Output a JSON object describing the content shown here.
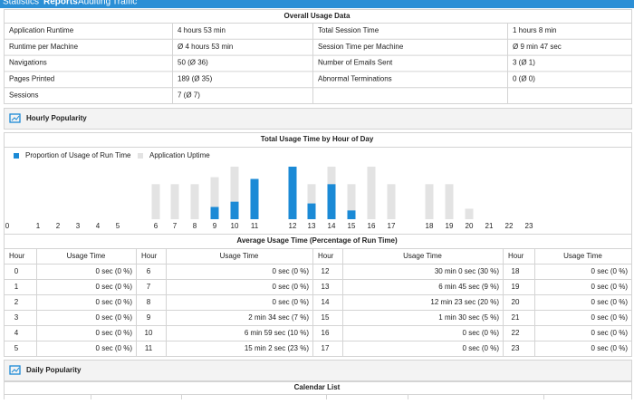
{
  "nav": [
    "Statistics",
    "Reports",
    "Auditing",
    "Traffic"
  ],
  "overall": {
    "title": "Overall Usage Data",
    "rows": [
      [
        "Application Runtime",
        "4 hours 53 min",
        "Total Session Time",
        "1 hours 8 min"
      ],
      [
        "Runtime per Machine",
        "Ø 4 hours 53 min",
        "Session Time per Machine",
        "Ø 9 min 47 sec"
      ],
      [
        "Navigations",
        "50 (Ø 36)",
        "Number of Emails Sent",
        "3 (Ø 1)"
      ],
      [
        "Pages Printed",
        "189 (Ø 35)",
        "Abnormal Terminations",
        "0 (Ø 0)"
      ],
      [
        "Sessions",
        "7 (Ø 7)"
      ]
    ]
  },
  "hourly_section": "Hourly Popularity",
  "chart_data": {
    "type": "bar",
    "title": "Total Usage Time by Hour of Day",
    "categories": [
      "0",
      "1",
      "2",
      "3",
      "4",
      "5",
      "6",
      "7",
      "8",
      "9",
      "10",
      "11",
      "12",
      "13",
      "14",
      "15",
      "16",
      "17",
      "18",
      "19",
      "20",
      "21",
      "22",
      "23"
    ],
    "series": [
      {
        "name": "Proportion of Usage of Run Time",
        "color": "#1b8ad6",
        "values": [
          0,
          0,
          0,
          0,
          0,
          0,
          0,
          0,
          0,
          7,
          10,
          23,
          30,
          9,
          20,
          5,
          0,
          0,
          0,
          0,
          0,
          0,
          0,
          0
        ]
      },
      {
        "name": "Application Uptime",
        "color": "#e3e3e3",
        "values": [
          0,
          0,
          0,
          0,
          0,
          0,
          20,
          20,
          20,
          24,
          30,
          20,
          30,
          20,
          30,
          20,
          30,
          20,
          20,
          20,
          6,
          0,
          0,
          0
        ]
      }
    ]
  },
  "hourly_table": {
    "title": "Average Usage Time (Percentage of Run Time)",
    "header": [
      "Hour",
      "Usage Time",
      "Hour",
      "Usage Time",
      "Hour",
      "Usage Time",
      "Hour",
      "Usage Time"
    ],
    "rows": [
      [
        "0",
        "0 sec (0 %)",
        "6",
        "0 sec (0 %)",
        "12",
        "30 min 0 sec (30 %)",
        "18",
        "0 sec (0 %)"
      ],
      [
        "1",
        "0 sec (0 %)",
        "7",
        "0 sec (0 %)",
        "13",
        "6 min 45 sec (9 %)",
        "19",
        "0 sec (0 %)"
      ],
      [
        "2",
        "0 sec (0 %)",
        "8",
        "0 sec (0 %)",
        "14",
        "12 min 23 sec (20 %)",
        "20",
        "0 sec (0 %)"
      ],
      [
        "3",
        "0 sec (0 %)",
        "9",
        "2 min 34 sec (7 %)",
        "15",
        "1 min 30 sec (5 %)",
        "21",
        "0 sec (0 %)"
      ],
      [
        "4",
        "0 sec (0 %)",
        "10",
        "6 min 59 sec (10 %)",
        "16",
        "0 sec (0 %)",
        "22",
        "0 sec (0 %)"
      ],
      [
        "5",
        "0 sec (0 %)",
        "11",
        "15 min 2 sec (23 %)",
        "17",
        "0 sec (0 %)",
        "23",
        "0 sec (0 %)"
      ]
    ]
  },
  "daily_section": "Daily Popularity",
  "calendar_title": "Calendar List"
}
